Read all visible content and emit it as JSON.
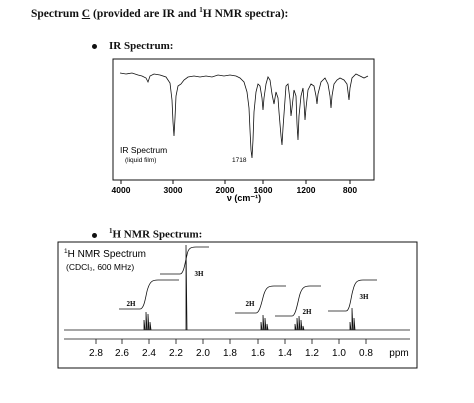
{
  "heading": {
    "prefix": "Spectrum ",
    "letter": "C",
    "middle": " (provided are IR and ",
    "sup": "1",
    "suffix": "H NMR spectra):"
  },
  "ir_bullet": {
    "label": "IR Spectrum:"
  },
  "nmr_bullet": {
    "sup": "1",
    "label": "H NMR Spectrum:"
  },
  "ir": {
    "title": "IR Spectrum",
    "subtitle": "(liquid film)",
    "peak_label": "1718",
    "xlabel": "ν (cm⁻¹)",
    "ticks": [
      "4000",
      "3000",
      "2000",
      "1600",
      "1200",
      "800"
    ]
  },
  "nmr": {
    "title": "H NMR Spectrum",
    "title_sup": "1",
    "subtitle": "(CDCl₃, 600 MHz)",
    "unit": "ppm",
    "ticks": [
      "2.8",
      "2.6",
      "2.4",
      "2.2",
      "2.0",
      "1.8",
      "1.6",
      "1.4",
      "1.2",
      "1.0",
      "0.8"
    ],
    "integrals": [
      "2H",
      "3H",
      "2H",
      "2H",
      "3H"
    ]
  }
}
